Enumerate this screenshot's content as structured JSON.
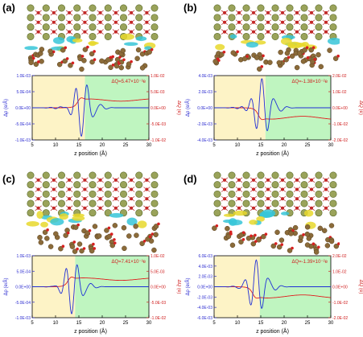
{
  "panels": [
    {
      "letter": "(a)",
      "delta_q_label": "ΔQ=5.47×10⁻³e",
      "left_ticks": [
        "1.0E-03",
        "5.0E-04",
        "0.0E+00",
        "-5.0E-04",
        "-1.0E-03"
      ],
      "right_ticks": [
        "1.0E-02",
        "5.0E-03",
        "0.0E+00",
        "-5.0E-03",
        "-1.0E-02"
      ],
      "x_ticks": [
        "5",
        "10",
        "15",
        "20",
        "25",
        "30"
      ],
      "interface_z": 16.3
    },
    {
      "letter": "(b)",
      "delta_q_label": "ΔQ=-1.38×10⁻²e",
      "left_ticks": [
        "4.0E-03",
        "2.0E-03",
        "0.0E+00",
        "-2.0E-03",
        "-4.0E-03"
      ],
      "right_ticks": [
        "2.0E-02",
        "1.0E-02",
        "0.0E+00",
        "-1.0E-02",
        "-2.0E-02"
      ],
      "x_ticks": [
        "5",
        "10",
        "15",
        "20",
        "25",
        "30"
      ],
      "interface_z": 16.0
    },
    {
      "letter": "(c)",
      "delta_q_label": "ΔQ=7.41×10⁻³e",
      "left_ticks": [
        "1.0E-03",
        "5.0E-04",
        "0.0E+00",
        "-5.0E-04",
        "-1.0E-03"
      ],
      "right_ticks": [
        "1.0E-02",
        "5.0E-03",
        "0.0E+00",
        "-5.0E-03",
        "-1.0E-02"
      ],
      "x_ticks": [
        "5",
        "10",
        "15",
        "20",
        "25",
        "30"
      ],
      "interface_z": 14.2
    },
    {
      "letter": "(d)",
      "delta_q_label": "ΔQ=-1.39×10⁻²e",
      "left_ticks": [
        "6.0E-03",
        "4.0E-03",
        "2.0E-03",
        "0.0E+00",
        "-2.0E-03",
        "-4.0E-03",
        "-6.0E-03"
      ],
      "right_ticks": [
        "2.0E-02",
        "1.0E-02",
        "0.0E+00",
        "-1.0E-02",
        "-2.0E-02"
      ],
      "x_ticks": [
        "5",
        "10",
        "15",
        "20",
        "25",
        "30"
      ],
      "interface_z": 14.8
    }
  ],
  "axis": {
    "x_label": "z position (Å)",
    "y_left_label": "Δρ (e/Å)",
    "y_right_label": "ΔQ (e)"
  },
  "colors": {
    "yellow_region": "#fdf3c6",
    "green_region": "#bff5c0",
    "rho_line": "#1f2fd6",
    "q_line": "#e02020",
    "accent_left": "#2a2ad0",
    "accent_right": "#d02020"
  }
}
